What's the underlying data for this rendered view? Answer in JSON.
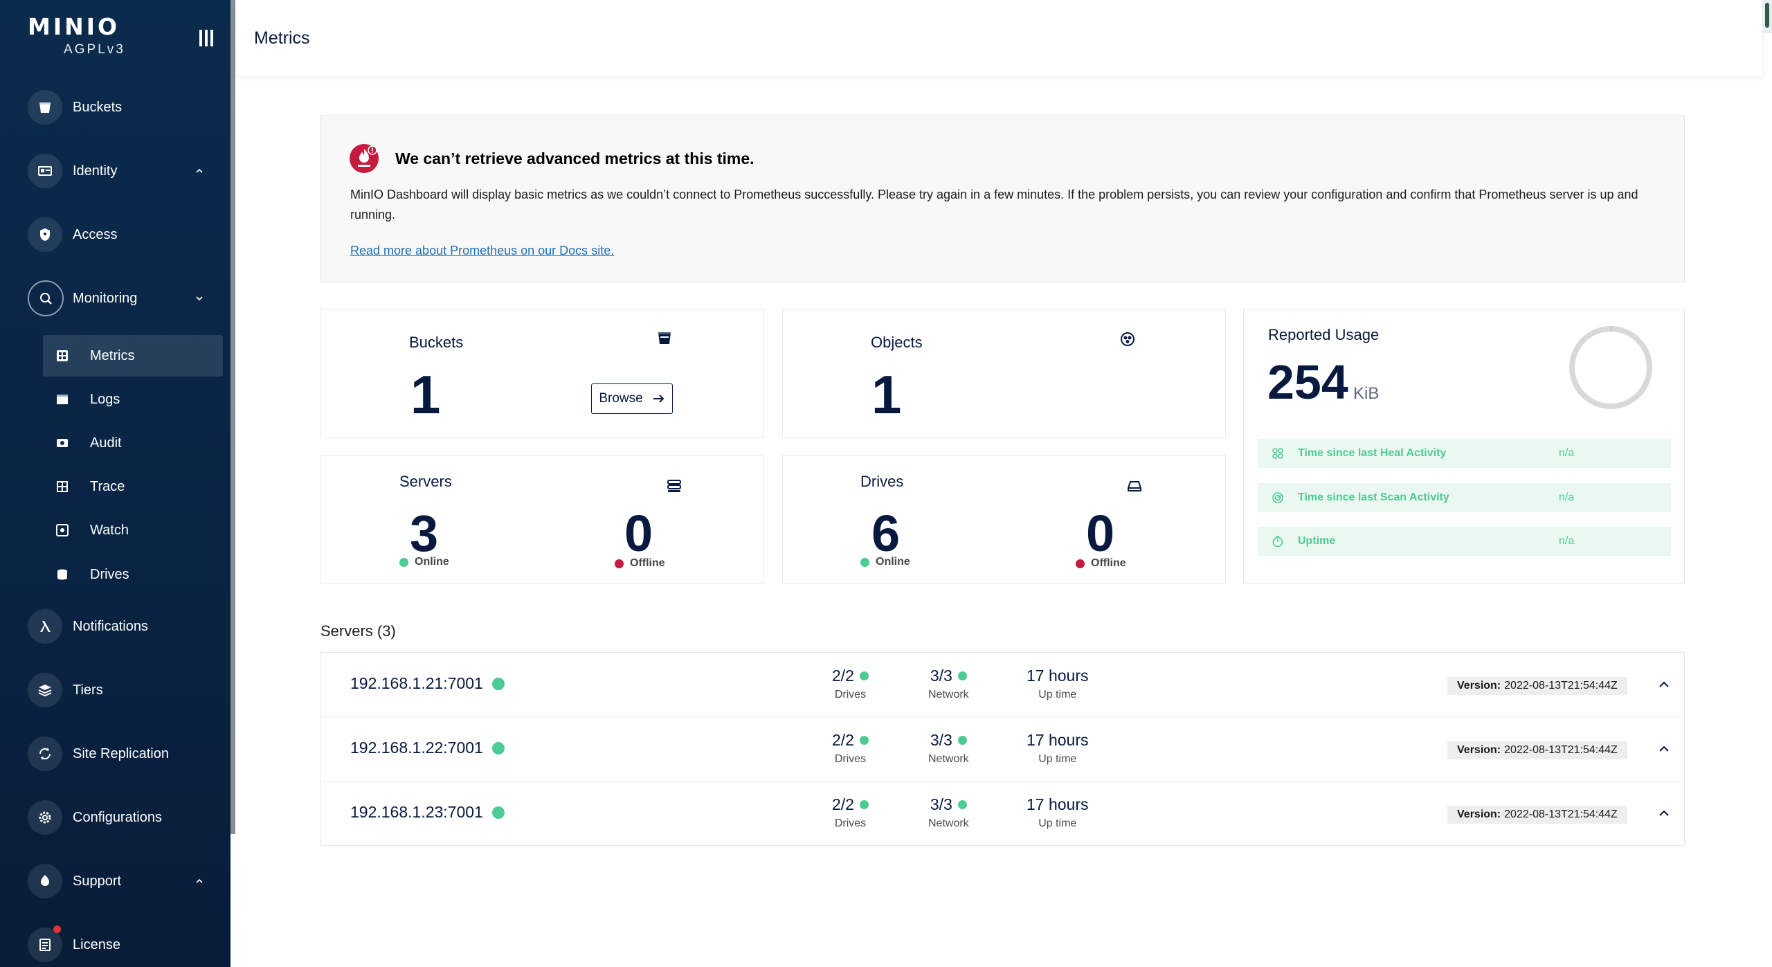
{
  "sidebar": {
    "logo": {
      "word": "MINIO",
      "sub": "AGPLv3"
    },
    "items": [
      {
        "label": "Buckets",
        "icon": "bucket-icon"
      },
      {
        "label": "Identity",
        "icon": "identity-icon"
      },
      {
        "label": "Access",
        "icon": "lock-icon"
      },
      {
        "label": "Monitoring",
        "icon": "monitoring-icon"
      },
      {
        "label": "Notifications",
        "icon": "lambda-icon"
      },
      {
        "label": "Tiers",
        "icon": "tiers-icon"
      },
      {
        "label": "Site Replication",
        "icon": "replication-icon"
      },
      {
        "label": "Configurations",
        "icon": "gear-icon"
      },
      {
        "label": "Support",
        "icon": "support-icon"
      },
      {
        "label": "License",
        "icon": "license-icon"
      }
    ],
    "monitoring_sub": [
      {
        "label": "Metrics",
        "icon": "metrics-icon"
      },
      {
        "label": "Logs",
        "icon": "logs-icon"
      },
      {
        "label": "Audit",
        "icon": "audit-icon"
      },
      {
        "label": "Trace",
        "icon": "trace-icon"
      },
      {
        "label": "Watch",
        "icon": "watch-icon"
      },
      {
        "label": "Drives",
        "icon": "drives-icon"
      }
    ]
  },
  "header": {
    "title": "Metrics"
  },
  "alert": {
    "title": "We can’t retrieve advanced metrics at this time.",
    "body": "MinIO Dashboard will display basic metrics as we couldn’t connect to Prometheus successfully. Please try again in a few minutes. If the problem persists, you can review your configuration and confirm that Prometheus server is up and running.",
    "link": "Read more about Prometheus on our Docs site."
  },
  "cards": {
    "buckets": {
      "title": "Buckets",
      "value": "1",
      "browse": "Browse"
    },
    "objects": {
      "title": "Objects",
      "value": "1"
    },
    "servers": {
      "title": "Servers",
      "online": "3",
      "offline": "0",
      "online_label": "Online",
      "offline_label": "Offline"
    },
    "drives": {
      "title": "Drives",
      "online": "6",
      "offline": "0",
      "online_label": "Online",
      "offline_label": "Offline"
    },
    "usage": {
      "title": "Reported Usage",
      "value": "254",
      "unit": "KiB",
      "stats": [
        {
          "label": "Time since last Heal Activity",
          "value": "n/a"
        },
        {
          "label": "Time since last Scan Activity",
          "value": "n/a"
        },
        {
          "label": "Uptime",
          "value": "n/a"
        }
      ]
    }
  },
  "servers": {
    "title": "Servers (3)",
    "labels": {
      "drives": "Drives",
      "network": "Network",
      "uptime": "Up time",
      "version": "Version:"
    },
    "rows": [
      {
        "host": "192.168.1.21:7001",
        "drives": "2/2",
        "network": "3/3",
        "uptime": "17 hours",
        "version": "2022-08-13T21:54:44Z"
      },
      {
        "host": "192.168.1.22:7001",
        "drives": "2/2",
        "network": "3/3",
        "uptime": "17 hours",
        "version": "2022-08-13T21:54:44Z"
      },
      {
        "host": "192.168.1.23:7001",
        "drives": "2/2",
        "network": "3/3",
        "uptime": "17 hours",
        "version": "2022-08-13T21:54:44Z"
      }
    ]
  },
  "colors": {
    "sidebar": "#0b2b4d",
    "accent_green": "#4ccb92",
    "offline_red": "#c51b3f",
    "text_dark": "#07193e"
  }
}
